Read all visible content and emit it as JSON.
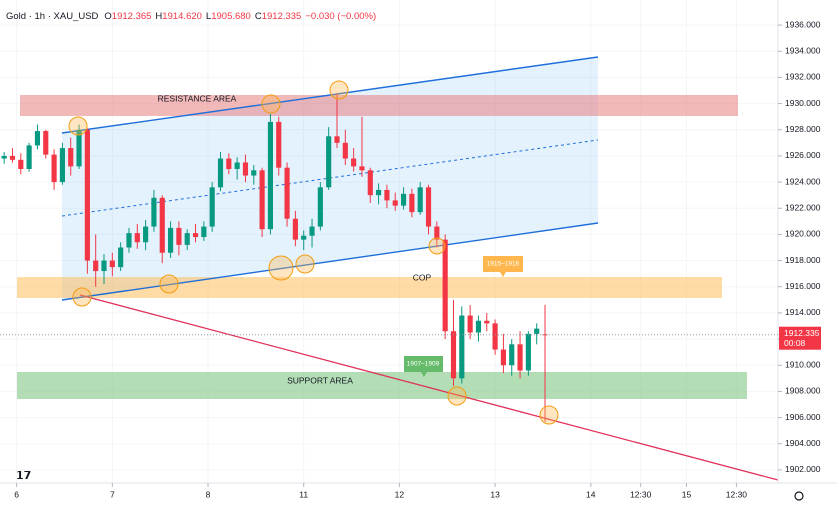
{
  "chart_data": {
    "type": "candlestick",
    "header": {
      "symbol": "Gold · 1h · XAU_USD",
      "ohlc": [
        {
          "label": "O",
          "text": "1912.365"
        },
        {
          "label": "H",
          "text": "1914.620"
        },
        {
          "label": "L",
          "text": "1905.680"
        },
        {
          "label": "C",
          "text": "1912.335"
        }
      ],
      "change": "−0.030 (−0.00%)"
    },
    "up_color": "#089981",
    "down_color": "#f23645",
    "grid": true,
    "xlim": [
      -1,
      186
    ],
    "ylim": [
      1901,
      1937
    ],
    "xticks": [
      {
        "value": 3,
        "label": "6"
      },
      {
        "value": 26,
        "label": "7"
      },
      {
        "value": 49,
        "label": "8"
      },
      {
        "value": 72,
        "label": "11"
      },
      {
        "value": 95,
        "label": "12"
      },
      {
        "value": 118,
        "label": "13"
      },
      {
        "value": 141,
        "label": "14"
      },
      {
        "value": 153,
        "label": "12:30"
      },
      {
        "value": 164,
        "label": "15"
      },
      {
        "value": 176,
        "label": "12:30"
      }
    ],
    "yticks": [
      {
        "value": 1902,
        "label": "1902.000"
      },
      {
        "value": 1904,
        "label": "1904.000"
      },
      {
        "value": 1906,
        "label": "1906.000"
      },
      {
        "value": 1908,
        "label": "1908.000"
      },
      {
        "value": 1910,
        "label": "1910.000"
      },
      {
        "value": 1912,
        "label": "1912.000"
      },
      {
        "value": 1914,
        "label": "1914.000"
      },
      {
        "value": 1916,
        "label": "1916.000"
      },
      {
        "value": 1918,
        "label": "1918.000"
      },
      {
        "value": 1920,
        "label": "1920.000"
      },
      {
        "value": 1922,
        "label": "1922.000"
      },
      {
        "value": 1924,
        "label": "1924.000"
      },
      {
        "value": 1926,
        "label": "1926.000"
      },
      {
        "value": 1928,
        "label": "1928.000"
      },
      {
        "value": 1930,
        "label": "1930.000"
      },
      {
        "value": 1932,
        "label": "1932.000"
      },
      {
        "value": 1934,
        "label": "1934.000"
      },
      {
        "value": 1936,
        "label": "1936.000"
      }
    ],
    "last_price": {
      "value": 1912.335,
      "label": "1912.335",
      "countdown": "00:08",
      "color": "#f23645"
    },
    "annotations": {
      "resistance": "RESISTANCE AREA",
      "cop": "COP",
      "support": "SUPPORT AREA",
      "cop_tag": "1915–1916",
      "support_tag": "1907–1909"
    },
    "x": [
      0,
      2,
      4,
      6,
      8,
      10,
      12,
      14,
      16,
      18,
      20,
      22,
      24,
      26,
      28,
      30,
      32,
      34,
      36,
      38,
      40,
      42,
      44,
      46,
      48,
      50,
      52,
      54,
      56,
      58,
      60,
      62,
      64,
      66,
      68,
      70,
      72,
      74,
      76,
      78,
      80,
      82,
      84,
      86,
      88,
      90,
      92,
      94,
      96,
      98,
      100,
      102,
      104,
      106,
      108,
      110,
      112,
      114,
      116,
      118,
      120,
      122,
      124,
      126,
      128,
      130
    ],
    "values": [
      [
        1925.8,
        1926.3,
        1925.4,
        1926.0
      ],
      [
        1926.0,
        1926.6,
        1925.5,
        1925.7
      ],
      [
        1925.7,
        1926.2,
        1924.6,
        1925.0
      ],
      [
        1925.0,
        1927.0,
        1924.8,
        1926.8
      ],
      [
        1926.8,
        1928.4,
        1926.5,
        1927.9
      ],
      [
        1927.9,
        1928.0,
        1925.8,
        1926.1
      ],
      [
        1926.1,
        1926.5,
        1923.4,
        1924.0
      ],
      [
        1924.0,
        1927.0,
        1923.8,
        1926.6
      ],
      [
        1926.6,
        1927.4,
        1924.5,
        1925.2
      ],
      [
        1925.2,
        1928.4,
        1925.0,
        1928.0
      ],
      [
        1928.0,
        1928.1,
        1917.0,
        1918.0
      ],
      [
        1918.0,
        1920.0,
        1916.0,
        1917.2
      ],
      [
        1917.2,
        1918.5,
        1916.2,
        1918.0
      ],
      [
        1918.0,
        1918.6,
        1916.8,
        1917.5
      ],
      [
        1917.5,
        1919.4,
        1917.2,
        1919.0
      ],
      [
        1919.0,
        1920.5,
        1918.6,
        1920.1
      ],
      [
        1920.1,
        1920.8,
        1918.9,
        1919.4
      ],
      [
        1919.4,
        1921.1,
        1918.8,
        1920.6
      ],
      [
        1920.6,
        1923.4,
        1920.2,
        1922.8
      ],
      [
        1922.8,
        1923.0,
        1917.8,
        1918.6
      ],
      [
        1918.6,
        1921.0,
        1918.2,
        1920.5
      ],
      [
        1920.5,
        1921.0,
        1918.4,
        1919.2
      ],
      [
        1919.2,
        1920.4,
        1918.8,
        1920.1
      ],
      [
        1920.1,
        1920.8,
        1919.4,
        1919.8
      ],
      [
        1919.8,
        1921.0,
        1919.5,
        1920.6
      ],
      [
        1920.6,
        1924.0,
        1920.2,
        1923.6
      ],
      [
        1923.6,
        1926.3,
        1923.3,
        1925.8
      ],
      [
        1925.8,
        1926.2,
        1924.6,
        1925.0
      ],
      [
        1925.0,
        1925.9,
        1924.2,
        1925.5
      ],
      [
        1925.5,
        1926.1,
        1924.0,
        1924.5
      ],
      [
        1924.5,
        1925.3,
        1923.8,
        1924.9
      ],
      [
        1924.9,
        1925.1,
        1919.8,
        1920.4
      ],
      [
        1920.4,
        1929.2,
        1920.0,
        1928.6
      ],
      [
        1928.6,
        1929.0,
        1924.5,
        1925.1
      ],
      [
        1925.1,
        1925.5,
        1920.6,
        1921.2
      ],
      [
        1921.2,
        1921.8,
        1919.1,
        1919.6
      ],
      [
        1919.6,
        1920.3,
        1918.8,
        1919.9
      ],
      [
        1919.9,
        1921.2,
        1919.0,
        1920.6
      ],
      [
        1920.6,
        1924.0,
        1920.3,
        1923.6
      ],
      [
        1923.6,
        1928.2,
        1923.4,
        1927.5
      ],
      [
        1927.5,
        1930.8,
        1926.6,
        1927.0
      ],
      [
        1927.0,
        1928.0,
        1925.3,
        1925.8
      ],
      [
        1925.8,
        1926.6,
        1924.8,
        1925.2
      ],
      [
        1925.2,
        1929.0,
        1924.4,
        1924.9
      ],
      [
        1924.9,
        1925.1,
        1922.4,
        1923.0
      ],
      [
        1923.0,
        1923.9,
        1922.3,
        1923.4
      ],
      [
        1923.4,
        1923.8,
        1922.0,
        1922.6
      ],
      [
        1922.6,
        1923.2,
        1921.8,
        1922.2
      ],
      [
        1922.2,
        1923.6,
        1921.9,
        1923.1
      ],
      [
        1923.1,
        1923.5,
        1921.3,
        1921.7
      ],
      [
        1921.7,
        1924.0,
        1921.5,
        1923.6
      ],
      [
        1923.6,
        1923.8,
        1920.0,
        1920.6
      ],
      [
        1920.6,
        1921.0,
        1919.0,
        1919.6
      ],
      [
        1919.6,
        1920.0,
        1912.0,
        1912.6
      ],
      [
        1912.6,
        1915.0,
        1908.4,
        1909.0
      ],
      [
        1909.0,
        1914.5,
        1908.6,
        1913.8
      ],
      [
        1913.8,
        1914.6,
        1912.0,
        1912.5
      ],
      [
        1912.5,
        1913.8,
        1911.8,
        1913.4
      ],
      [
        1913.4,
        1914.0,
        1912.6,
        1913.2
      ],
      [
        1913.2,
        1913.5,
        1910.8,
        1911.2
      ],
      [
        1911.2,
        1912.4,
        1909.4,
        1910.0
      ],
      [
        1910.0,
        1912.0,
        1909.2,
        1911.6
      ],
      [
        1911.6,
        1912.6,
        1909.0,
        1909.6
      ],
      [
        1909.6,
        1912.6,
        1909.2,
        1912.4
      ],
      [
        1912.4,
        1913.2,
        1911.6,
        1912.8
      ],
      [
        1912.365,
        1914.62,
        1905.68,
        1912.335
      ]
    ]
  }
}
